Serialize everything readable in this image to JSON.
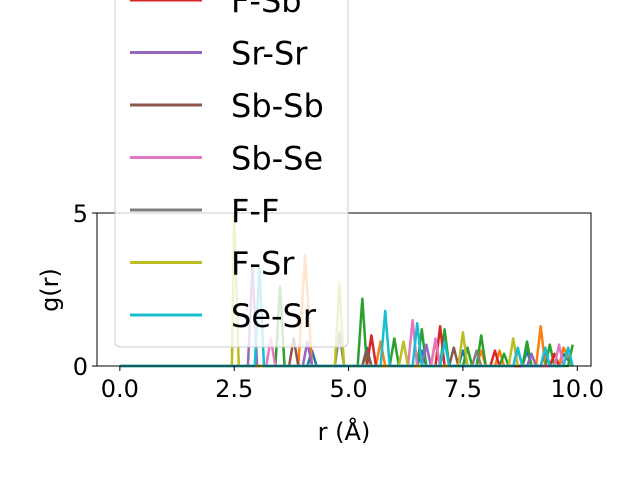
{
  "chart_data": {
    "type": "line",
    "xlabel": "r (Å)",
    "ylabel": "g(r)",
    "xlim": [
      -0.5,
      10.3
    ],
    "ylim": [
      0,
      5
    ],
    "xticks": [
      {
        "value": 0.0,
        "label": "0.0"
      },
      {
        "value": 2.5,
        "label": "2.5"
      },
      {
        "value": 5.0,
        "label": "5.0"
      },
      {
        "value": 7.5,
        "label": "7.5"
      },
      {
        "value": 10.0,
        "label": "10.0"
      }
    ],
    "yticks": [
      {
        "value": 0,
        "label": "0"
      },
      {
        "value": 5,
        "label": "5"
      }
    ],
    "grid": false,
    "legend_position": "upper-left",
    "legend": [
      {
        "name": "F-Sb",
        "color": "#d62728"
      },
      {
        "name": "Sr-Sr",
        "color": "#9467bd"
      },
      {
        "name": "Sb-Sb",
        "color": "#8c564b"
      },
      {
        "name": "Sb-Se",
        "color": "#e377c2"
      },
      {
        "name": "F-F",
        "color": "#7f7f7f"
      },
      {
        "name": "F-Sr",
        "color": "#bcbd22"
      },
      {
        "name": "Se-Sr",
        "color": "#17becf"
      }
    ],
    "series": [
      {
        "color": "#1f77b4",
        "points": [
          [
            0,
            0
          ],
          [
            4.1,
            0
          ],
          [
            4.2,
            0.5
          ],
          [
            4.3,
            0
          ],
          [
            5.3,
            0
          ],
          [
            5.4,
            0.6
          ],
          [
            5.5,
            0
          ],
          [
            6.5,
            0
          ],
          [
            6.6,
            0.5
          ],
          [
            6.7,
            0
          ],
          [
            7.4,
            0
          ],
          [
            7.5,
            0.5
          ],
          [
            7.6,
            0
          ],
          [
            8.8,
            0
          ],
          [
            8.9,
            0.5
          ],
          [
            9.0,
            0
          ],
          [
            9.6,
            0
          ],
          [
            9.7,
            0.4
          ],
          [
            9.9,
            0
          ]
        ]
      },
      {
        "color": "#ff7f0e",
        "points": [
          [
            0,
            0
          ],
          [
            3.9,
            0
          ],
          [
            4.05,
            3.6
          ],
          [
            4.2,
            0
          ],
          [
            5.6,
            0
          ],
          [
            5.7,
            0.8
          ],
          [
            5.8,
            0
          ],
          [
            6.8,
            0
          ],
          [
            6.9,
            0.8
          ],
          [
            7.0,
            0
          ],
          [
            7.8,
            0
          ],
          [
            7.9,
            0.5
          ],
          [
            8.0,
            0
          ],
          [
            8.2,
            0
          ],
          [
            8.3,
            0.5
          ],
          [
            8.4,
            0
          ],
          [
            9.1,
            0
          ],
          [
            9.2,
            1.3
          ],
          [
            9.3,
            0
          ],
          [
            9.6,
            0
          ],
          [
            9.7,
            0.6
          ],
          [
            9.9,
            0
          ]
        ]
      },
      {
        "color": "#2ca02c",
        "points": [
          [
            0,
            0
          ],
          [
            3.4,
            0
          ],
          [
            3.5,
            2.6
          ],
          [
            3.6,
            0
          ],
          [
            5.2,
            0
          ],
          [
            5.3,
            2.2
          ],
          [
            5.4,
            0
          ],
          [
            5.9,
            0
          ],
          [
            6.0,
            0.9
          ],
          [
            6.1,
            0
          ],
          [
            6.5,
            0
          ],
          [
            6.6,
            1.2
          ],
          [
            6.7,
            0
          ],
          [
            7.0,
            0
          ],
          [
            7.1,
            1.2
          ],
          [
            7.2,
            0
          ],
          [
            7.5,
            0
          ],
          [
            7.6,
            0.6
          ],
          [
            7.7,
            0
          ],
          [
            7.8,
            0
          ],
          [
            7.9,
            1.0
          ],
          [
            8.0,
            0
          ],
          [
            8.3,
            0
          ],
          [
            8.4,
            0.4
          ],
          [
            8.5,
            0
          ],
          [
            8.8,
            0
          ],
          [
            8.9,
            0.8
          ],
          [
            9.0,
            0
          ],
          [
            9.3,
            0
          ],
          [
            9.4,
            0.7
          ],
          [
            9.5,
            0
          ],
          [
            9.8,
            0
          ],
          [
            9.9,
            0.7
          ]
        ]
      },
      {
        "color": "#d62728",
        "points": [
          [
            0,
            0
          ],
          [
            5.4,
            0
          ],
          [
            5.5,
            1.0
          ],
          [
            5.6,
            0
          ],
          [
            6.9,
            0
          ],
          [
            7.0,
            1.3
          ],
          [
            7.1,
            0
          ],
          [
            8.1,
            0
          ],
          [
            8.2,
            0.5
          ],
          [
            8.3,
            0
          ],
          [
            9.4,
            0
          ],
          [
            9.5,
            0.4
          ],
          [
            9.6,
            0
          ]
        ]
      },
      {
        "color": "#9467bd",
        "points": [
          [
            0,
            0
          ],
          [
            2.8,
            0
          ],
          [
            2.9,
            3.3
          ],
          [
            3.0,
            0
          ],
          [
            4.0,
            0
          ],
          [
            4.1,
            0.8
          ],
          [
            4.2,
            0
          ],
          [
            6.6,
            0
          ],
          [
            6.7,
            0.7
          ],
          [
            6.8,
            0
          ],
          [
            8.9,
            0
          ],
          [
            9.0,
            0.4
          ],
          [
            9.1,
            0
          ]
        ]
      },
      {
        "color": "#8c564b",
        "points": [
          [
            0,
            0
          ],
          [
            3.7,
            0
          ],
          [
            3.8,
            0.9
          ],
          [
            3.9,
            0
          ],
          [
            5.3,
            0
          ],
          [
            5.4,
            0.5
          ],
          [
            5.5,
            0
          ],
          [
            7.2,
            0
          ],
          [
            7.3,
            0.6
          ],
          [
            7.4,
            0
          ],
          [
            9.2,
            0
          ],
          [
            9.3,
            0.5
          ],
          [
            9.4,
            0
          ]
        ]
      },
      {
        "color": "#e377c2",
        "points": [
          [
            0,
            0
          ],
          [
            3.2,
            0
          ],
          [
            3.3,
            0.9
          ],
          [
            3.4,
            0
          ],
          [
            6.3,
            0
          ],
          [
            6.4,
            1.5
          ],
          [
            6.5,
            0
          ],
          [
            6.8,
            0
          ],
          [
            6.9,
            0.9
          ],
          [
            7.0,
            0
          ],
          [
            8.6,
            0
          ],
          [
            8.7,
            0.5
          ],
          [
            8.8,
            0
          ],
          [
            9.5,
            0
          ],
          [
            9.6,
            0.7
          ],
          [
            9.7,
            0
          ]
        ]
      },
      {
        "color": "#7f7f7f",
        "points": [
          [
            0,
            0
          ],
          [
            4.7,
            0
          ],
          [
            4.8,
            1.1
          ],
          [
            4.9,
            0
          ],
          [
            7.7,
            0
          ],
          [
            7.8,
            0.5
          ],
          [
            7.9,
            0
          ]
        ]
      },
      {
        "color": "#bcbd22",
        "points": [
          [
            0,
            0
          ],
          [
            2.45,
            0
          ],
          [
            2.5,
            4.9
          ],
          [
            2.6,
            0
          ],
          [
            4.7,
            0
          ],
          [
            4.8,
            2.7
          ],
          [
            4.9,
            0
          ],
          [
            6.1,
            0
          ],
          [
            6.2,
            0.8
          ],
          [
            6.3,
            0
          ],
          [
            7.4,
            0
          ],
          [
            7.5,
            1.1
          ],
          [
            7.6,
            0
          ],
          [
            8.5,
            0
          ],
          [
            8.6,
            0.9
          ],
          [
            8.7,
            0
          ]
        ]
      },
      {
        "color": "#17becf",
        "points": [
          [
            0,
            0
          ],
          [
            2.95,
            0
          ],
          [
            3.05,
            3.2
          ],
          [
            3.15,
            0
          ],
          [
            5.7,
            0
          ],
          [
            5.8,
            1.8
          ],
          [
            5.9,
            0
          ],
          [
            6.4,
            0
          ],
          [
            6.5,
            1.4
          ],
          [
            6.6,
            0
          ],
          [
            7.0,
            0
          ],
          [
            7.1,
            0.8
          ],
          [
            7.2,
            0
          ],
          [
            8.6,
            0
          ],
          [
            8.7,
            0.6
          ],
          [
            8.8,
            0
          ],
          [
            9.2,
            0
          ],
          [
            9.3,
            0.6
          ],
          [
            9.4,
            0
          ],
          [
            9.7,
            0
          ],
          [
            9.8,
            0.6
          ],
          [
            9.9,
            0
          ]
        ]
      }
    ]
  }
}
